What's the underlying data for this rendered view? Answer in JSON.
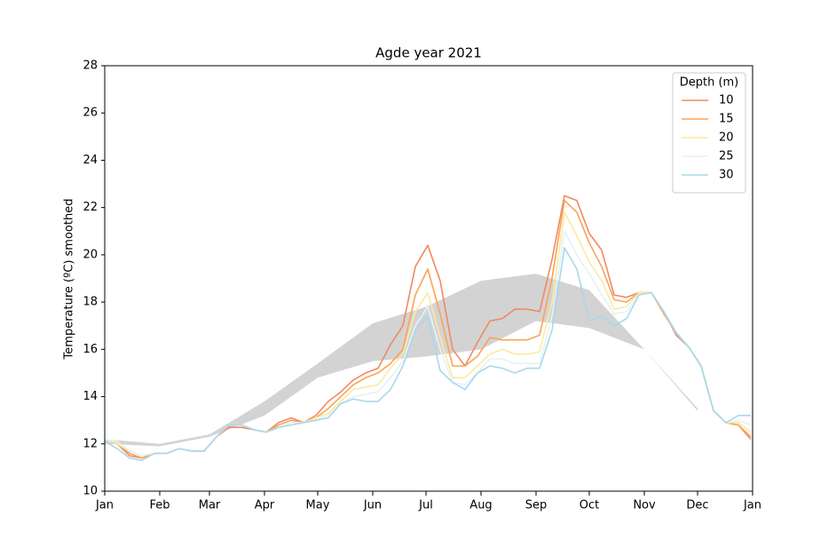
{
  "chart_data": {
    "type": "line",
    "title": "Agde year 2021",
    "ylabel": "Temperature (ºC) smoothed",
    "x": [
      0,
      7,
      14,
      21,
      28,
      35,
      42,
      49,
      56,
      63,
      70,
      77,
      84,
      91,
      98,
      105,
      112,
      119,
      126,
      133,
      140,
      147,
      154,
      161,
      168,
      175,
      182,
      189,
      196,
      203,
      210,
      217,
      224,
      231,
      238,
      245,
      252,
      259,
      266,
      273,
      280,
      287,
      294,
      301,
      308,
      315,
      322,
      329,
      336,
      343,
      350,
      357,
      364
    ],
    "xlim": [
      0,
      365
    ],
    "xticks": [
      {
        "value": 0,
        "label": "Jan"
      },
      {
        "value": 31,
        "label": "Feb"
      },
      {
        "value": 59,
        "label": "Mar"
      },
      {
        "value": 90,
        "label": "Apr"
      },
      {
        "value": 120,
        "label": "May"
      },
      {
        "value": 151,
        "label": "Jun"
      },
      {
        "value": 181,
        "label": "Jul"
      },
      {
        "value": 212,
        "label": "Aug"
      },
      {
        "value": 243,
        "label": "Sep"
      },
      {
        "value": 273,
        "label": "Oct"
      },
      {
        "value": 304,
        "label": "Nov"
      },
      {
        "value": 334,
        "label": "Dec"
      },
      {
        "value": 365,
        "label": "Jan"
      }
    ],
    "ylim": [
      10,
      28
    ],
    "yticks": [
      10,
      12,
      14,
      16,
      18,
      20,
      22,
      24,
      26,
      28
    ],
    "legend_title": "Depth (m)",
    "legend_loc": "upper right",
    "band": {
      "color": "#d3d3d3",
      "x": [
        0,
        31,
        59,
        90,
        120,
        151,
        181,
        212,
        243,
        273,
        304,
        334
      ],
      "lower": [
        12.0,
        11.9,
        12.3,
        13.2,
        14.8,
        15.5,
        15.7,
        16.0,
        17.2,
        16.9,
        16.0,
        13.4
      ],
      "upper": [
        12.2,
        12.0,
        12.4,
        13.8,
        15.4,
        17.1,
        17.8,
        18.9,
        19.2,
        18.5,
        16.0,
        13.5
      ]
    },
    "series": [
      {
        "name": "10",
        "color": "#f08a62",
        "values": [
          12.2,
          12.0,
          11.5,
          11.4,
          11.6,
          11.6,
          11.8,
          11.7,
          11.7,
          12.3,
          12.7,
          12.7,
          12.6,
          12.5,
          12.9,
          13.1,
          12.9,
          13.2,
          13.8,
          14.2,
          14.7,
          15.0,
          15.2,
          16.2,
          17.0,
          19.5,
          20.4,
          18.9,
          16.0,
          15.3,
          16.3,
          17.2,
          17.3,
          17.7,
          17.7,
          17.6,
          19.8,
          22.5,
          22.3,
          20.9,
          20.2,
          18.3,
          18.2,
          18.4,
          18.4,
          17.6,
          16.6,
          16.1,
          15.3,
          13.4,
          12.9,
          12.8,
          12.2
        ]
      },
      {
        "name": "15",
        "color": "#fba356",
        "values": [
          12.2,
          12.0,
          11.6,
          11.4,
          11.6,
          11.6,
          11.8,
          11.7,
          11.7,
          12.3,
          12.8,
          12.8,
          12.6,
          12.5,
          12.8,
          13.0,
          12.9,
          13.1,
          13.5,
          14.0,
          14.5,
          14.8,
          15.0,
          15.4,
          16.0,
          18.3,
          19.4,
          17.5,
          15.3,
          15.3,
          15.7,
          16.5,
          16.4,
          16.4,
          16.4,
          16.6,
          19.0,
          22.3,
          21.8,
          20.5,
          19.5,
          18.1,
          18.0,
          18.4,
          18.4,
          17.5,
          16.7,
          16.1,
          15.3,
          13.4,
          12.9,
          12.8,
          12.3
        ]
      },
      {
        "name": "20",
        "color": "#fde9a0",
        "values": [
          12.2,
          12.0,
          11.7,
          11.5,
          11.6,
          11.6,
          11.8,
          11.7,
          11.7,
          12.3,
          12.8,
          12.8,
          12.6,
          12.5,
          12.7,
          12.9,
          12.9,
          13.1,
          13.3,
          13.8,
          14.3,
          14.4,
          14.5,
          15.2,
          15.8,
          17.6,
          18.4,
          16.5,
          14.8,
          14.8,
          15.3,
          15.8,
          16.0,
          15.8,
          15.8,
          15.9,
          18.0,
          21.8,
          20.8,
          19.7,
          18.9,
          17.7,
          17.8,
          18.4,
          18.4,
          17.6,
          16.7,
          16.1,
          15.3,
          13.4,
          12.9,
          12.9,
          12.5
        ]
      },
      {
        "name": "25",
        "color": "#e3f2fa",
        "values": [
          12.2,
          12.1,
          11.7,
          11.5,
          11.6,
          11.6,
          11.8,
          11.7,
          11.7,
          12.3,
          12.8,
          12.8,
          12.6,
          12.5,
          12.7,
          12.9,
          12.9,
          13.0,
          13.2,
          13.7,
          14.0,
          14.1,
          14.2,
          14.8,
          15.5,
          17.0,
          17.8,
          16.0,
          14.6,
          14.5,
          15.0,
          15.6,
          15.6,
          15.4,
          15.4,
          15.4,
          17.4,
          21.0,
          20.0,
          19.2,
          18.3,
          17.5,
          17.6,
          18.3,
          18.4,
          17.6,
          16.7,
          16.1,
          15.3,
          13.4,
          12.9,
          13.0,
          12.8
        ]
      },
      {
        "name": "30",
        "color": "#a8d8eb",
        "values": [
          12.1,
          11.8,
          11.4,
          11.3,
          11.6,
          11.6,
          11.8,
          11.7,
          11.7,
          12.3,
          12.8,
          12.8,
          12.6,
          12.5,
          12.7,
          12.8,
          12.9,
          13.0,
          13.1,
          13.7,
          13.9,
          13.8,
          13.8,
          14.3,
          15.3,
          16.8,
          17.4,
          15.1,
          14.6,
          14.3,
          15.0,
          15.3,
          15.2,
          15.0,
          15.2,
          15.2,
          16.8,
          20.3,
          19.4,
          17.2,
          17.4,
          17.0,
          17.3,
          18.3,
          18.4,
          17.6,
          16.7,
          16.1,
          15.3,
          13.4,
          12.9,
          13.2,
          13.2
        ]
      }
    ]
  }
}
